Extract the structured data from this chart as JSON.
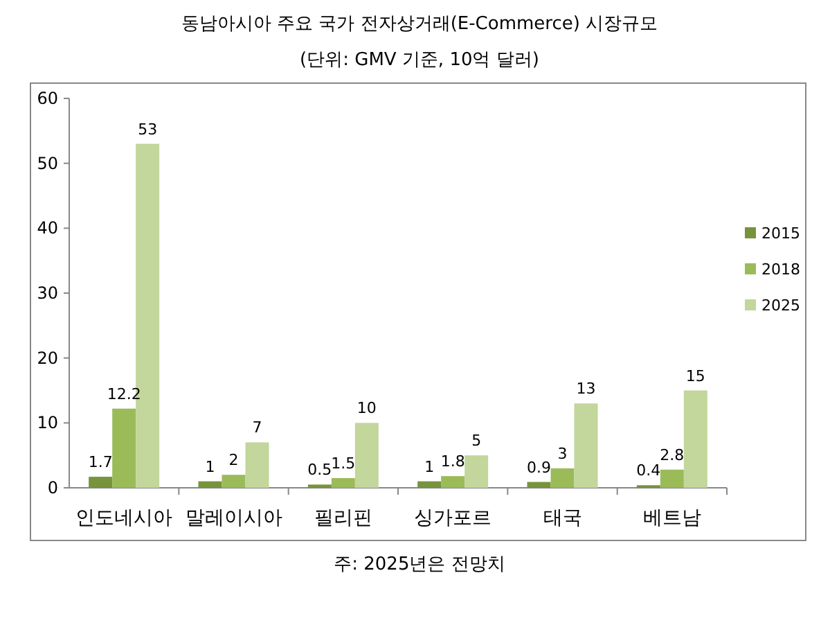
{
  "chart_data": {
    "type": "bar",
    "title": "동남아시아 주요 국가 전자상거래(E-Commerce) 시장규모",
    "subtitle": "(단위: GMV 기준, 10억 달러)",
    "categories": [
      "인도네시아",
      "말레이시아",
      "필리핀",
      "싱가포르",
      "태국",
      "베트남"
    ],
    "series": [
      {
        "name": "2015",
        "color": "#77933c",
        "values": [
          1.7,
          1,
          0.5,
          1,
          0.9,
          0.4
        ]
      },
      {
        "name": "2018",
        "color": "#9bbb59",
        "values": [
          12.2,
          2,
          1.5,
          1.8,
          3,
          2.8
        ]
      },
      {
        "name": "2025",
        "color": "#c3d69b",
        "values": [
          53,
          7,
          10,
          5,
          13,
          15
        ]
      }
    ],
    "ylim": [
      0,
      60
    ],
    "yticks": [
      0,
      10,
      20,
      30,
      40,
      50,
      60
    ],
    "grid": false,
    "legend": "right",
    "data_labels": true,
    "annotations": [
      "주: 2025년은 전망치"
    ]
  }
}
